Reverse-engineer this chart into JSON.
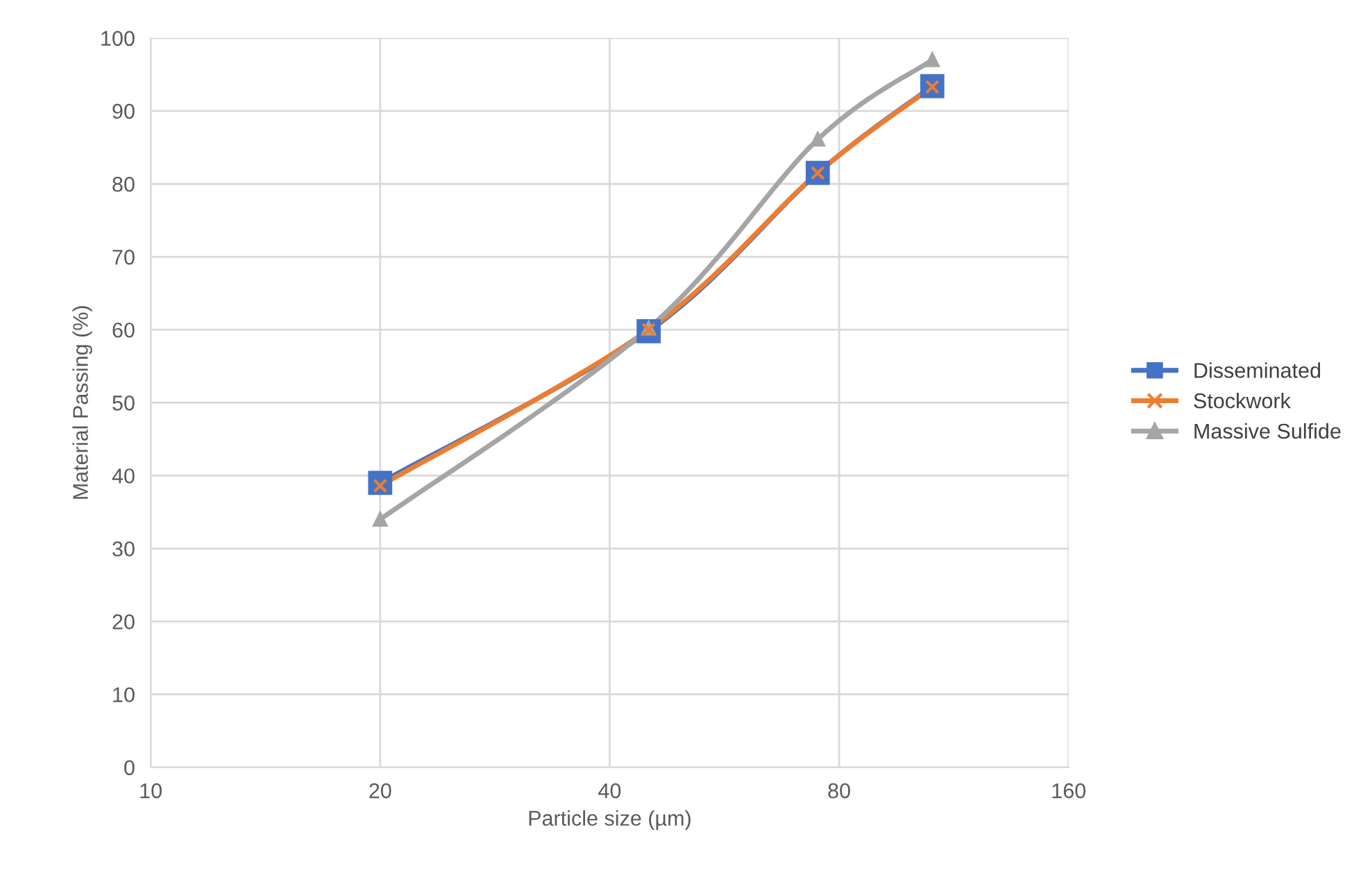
{
  "chart_data": {
    "type": "line",
    "xlabel": "Particle size (µm)",
    "ylabel": "Material Passing (%)",
    "x": [
      20,
      45,
      75,
      106
    ],
    "series": [
      {
        "name": "Disseminated",
        "color": "#4472c4",
        "marker": "square",
        "values": [
          39.0,
          59.8,
          81.5,
          93.4
        ]
      },
      {
        "name": "Stockwork",
        "color": "#ed7d31",
        "marker": "cross",
        "values": [
          38.6,
          60.0,
          81.5,
          93.3
        ]
      },
      {
        "name": "Massive Sulfide",
        "color": "#a5a5a5",
        "marker": "triangle",
        "values": [
          34.0,
          60.2,
          86.1,
          97.0
        ]
      }
    ],
    "log": "x",
    "xlim": [
      10,
      160
    ],
    "xticks": [
      10,
      20,
      40,
      80,
      160
    ],
    "ylim": [
      0,
      100
    ],
    "yticks": [
      0,
      10,
      20,
      30,
      40,
      50,
      60,
      70,
      80,
      90,
      100
    ],
    "grid": true,
    "legend": "right",
    "line_style": "solid"
  }
}
